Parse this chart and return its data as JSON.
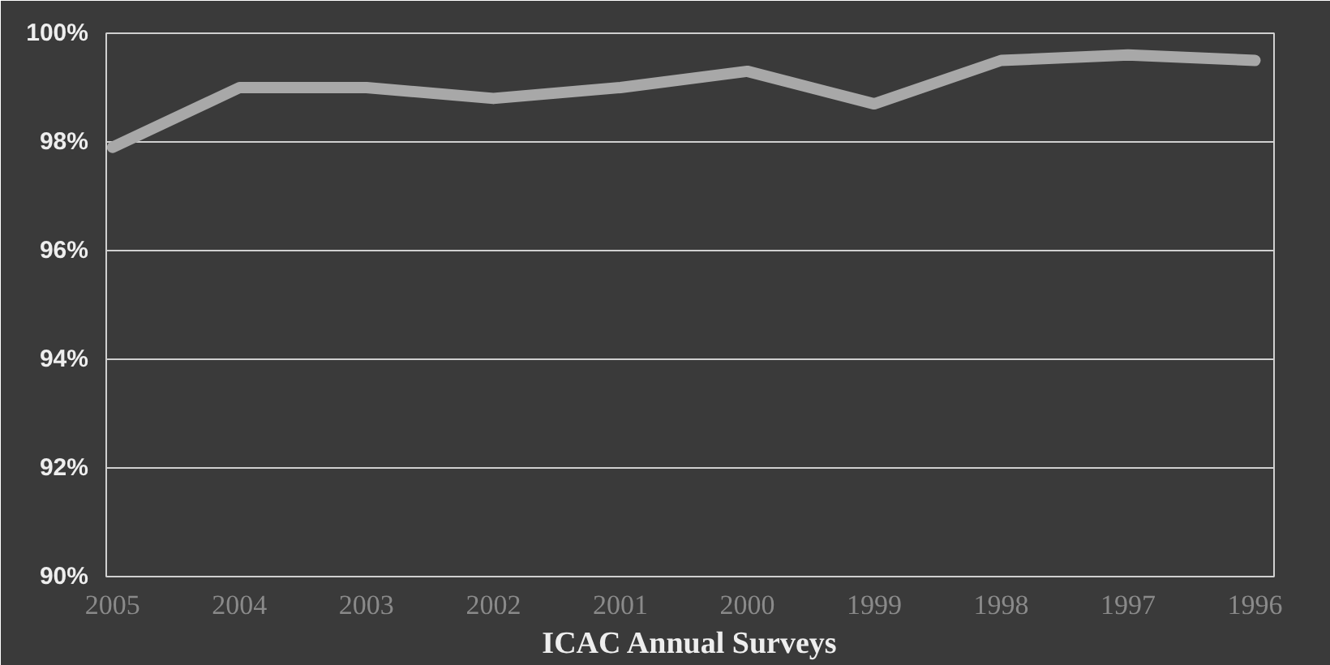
{
  "chart_data": {
    "type": "line",
    "xlabel": "ICAC Annual Surveys",
    "categories": [
      "2005",
      "2004",
      "2003",
      "2002",
      "2001",
      "2000",
      "1999",
      "1998",
      "1997",
      "1996"
    ],
    "series": [
      {
        "color": "#a8a8a8",
        "values": [
          97.9,
          99.0,
          99.0,
          98.8,
          99.0,
          99.3,
          98.7,
          99.5,
          99.6,
          99.5
        ]
      }
    ],
    "ylim": [
      90,
      100
    ],
    "yticks": [
      {
        "value": 90,
        "label": "90%"
      },
      {
        "value": 92,
        "label": "92%"
      },
      {
        "value": 94,
        "label": "94%"
      },
      {
        "value": 96,
        "label": "96%"
      },
      {
        "value": 98,
        "label": "98%"
      },
      {
        "value": 100,
        "label": "100%"
      }
    ],
    "grid": "y",
    "marker": "none",
    "line_style": "solid"
  }
}
